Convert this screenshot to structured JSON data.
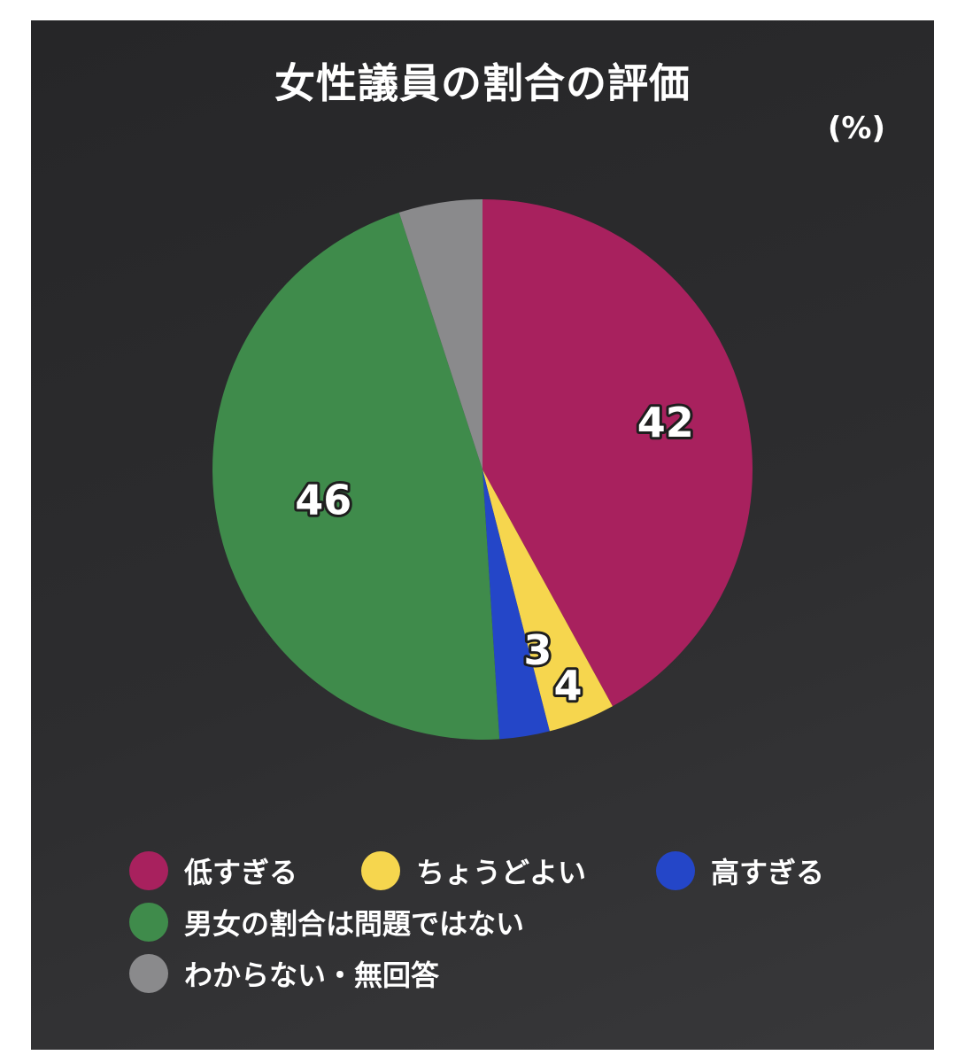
{
  "chart_data": {
    "type": "pie",
    "title": "女性議員の割合の評価",
    "unit": "(%)",
    "start_angle_deg": 0,
    "direction": "clockwise",
    "slices": [
      {
        "name": "低すぎる",
        "value": 42,
        "label": "42",
        "color": "#a8215e"
      },
      {
        "name": "ちょうどよい",
        "value": 4,
        "label": "4",
        "color": "#f6d64e"
      },
      {
        "name": "高すぎる",
        "value": 3,
        "label": "3",
        "color": "#2446c8"
      },
      {
        "name": "男女の割合は問題ではない",
        "value": 46,
        "label": "46",
        "color": "#3f8b4b"
      },
      {
        "name": "わからない・無回答",
        "value": 5,
        "label": "",
        "color": "#8a8a8c"
      }
    ],
    "legend_position": "bottom"
  },
  "legend": {
    "rows": [
      [
        0,
        1,
        2
      ],
      [
        3
      ],
      [
        4
      ]
    ]
  }
}
